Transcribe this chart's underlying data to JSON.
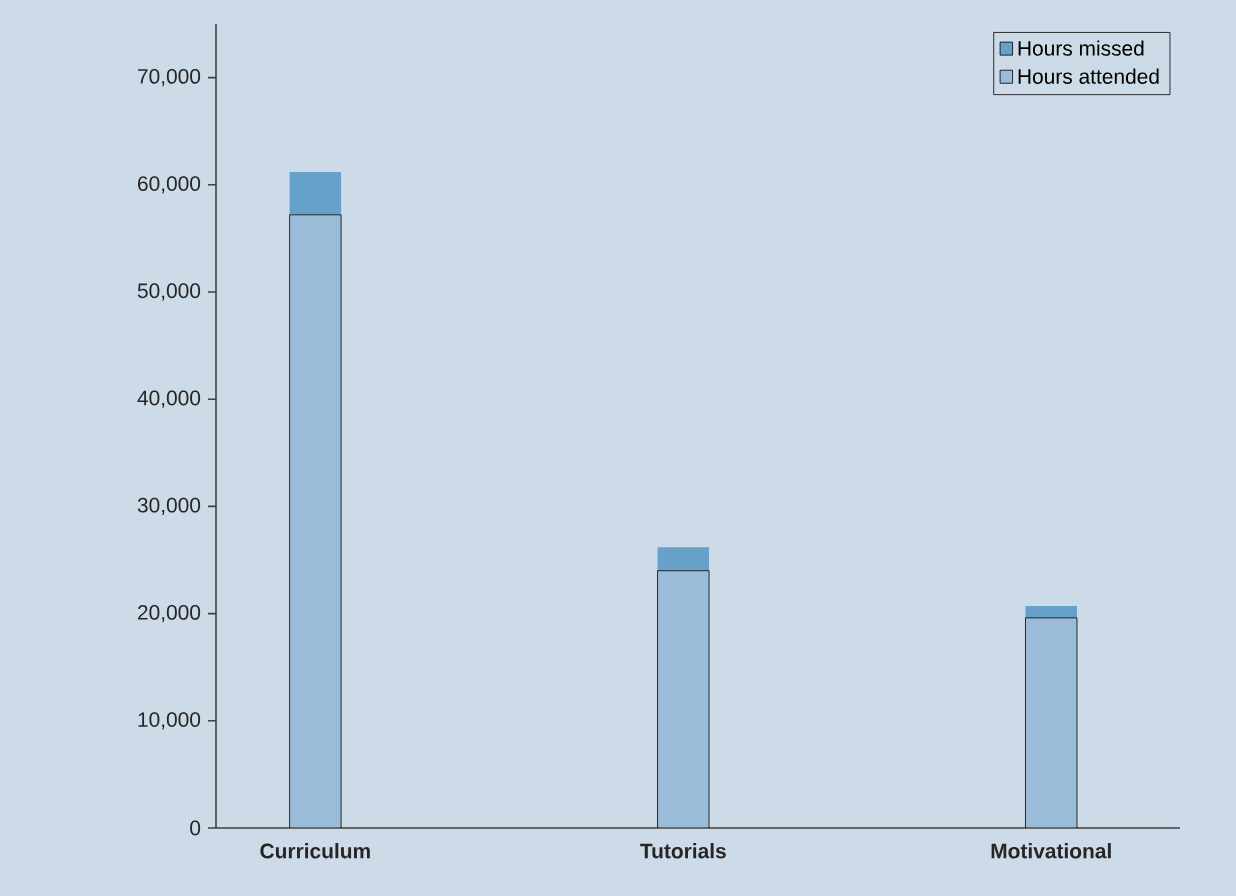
{
  "chart_data": {
    "type": "bar",
    "stacked": true,
    "categories": [
      "Curriculum",
      "Tutorials",
      "Motivational"
    ],
    "series": [
      {
        "name": "Hours attended",
        "color": "#9bbcd8",
        "values": [
          57200,
          24000,
          19600
        ]
      },
      {
        "name": "Hours missed",
        "color": "#65a1c8",
        "values": [
          4000,
          2200,
          1100
        ]
      }
    ],
    "ylim": [
      0,
      75000
    ],
    "yticks": [
      {
        "value": 0,
        "label": "0"
      },
      {
        "value": 10000,
        "label": "10,000"
      },
      {
        "value": 20000,
        "label": "20,000"
      },
      {
        "value": 30000,
        "label": "30,000"
      },
      {
        "value": 40000,
        "label": "40,000"
      },
      {
        "value": 50000,
        "label": "50,000"
      },
      {
        "value": 60000,
        "label": "60,000"
      },
      {
        "value": 70000,
        "label": "70,000"
      }
    ],
    "legend": "top right",
    "grid": false
  }
}
